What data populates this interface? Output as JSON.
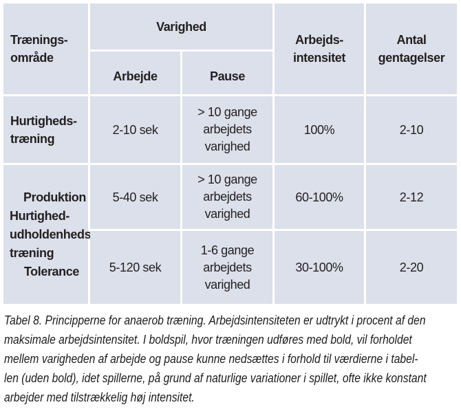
{
  "table": {
    "header": {
      "area": [
        "Trænings-",
        "område"
      ],
      "varighed": "Varighed",
      "arbejde": "Arbejde",
      "pause": "Pause",
      "intensitet": [
        "Arbejds-",
        "intensitet"
      ],
      "gentagelser": [
        "Antal",
        "gentagelser"
      ]
    },
    "rows": {
      "r1": {
        "label": [
          "Hurtigheds-",
          "træning"
        ],
        "arbejde": "2-10 sek",
        "pause": [
          "> 10 gange",
          "arbejdets",
          "varighed"
        ],
        "intensitet": "100%",
        "gentagelser": "2-10"
      },
      "group_label": [
        "Produktion",
        "Hurtighed-",
        "udholdenheds-",
        "træning",
        "Tolerance"
      ],
      "r2": {
        "arbejde": "5-40 sek",
        "pause": [
          "> 10 gange",
          "arbejdets",
          "varighed"
        ],
        "intensitet": "60-100%",
        "gentagelser": "2-12"
      },
      "r3": {
        "arbejde": "5-120 sek",
        "pause": [
          "1-6 gange",
          "arbejdets",
          "varighed"
        ],
        "intensitet": "30-100%",
        "gentagelser": "2-20"
      }
    }
  },
  "caption": {
    "lines": [
      "Tabel 8. Principperne for anaerob træning. Arbejdsintensiteten er udtrykt i procent af den",
      "maksimale arbejdsintensitet. I boldspil, hvor træningen udføres med bold, vil forholdet",
      "mellem varigheden af arbejde og pause kunne nedsættes i forhold til værdierne i tabel-",
      "len (uden bold), idet spillerne, på grund af naturlige variationer i spillet, ofte ikke konstant",
      "arbejder med tilstrækkelig høj intensitet."
    ]
  },
  "colors": {
    "cell_bg": "#dbe0ea",
    "text": "#231f20"
  }
}
